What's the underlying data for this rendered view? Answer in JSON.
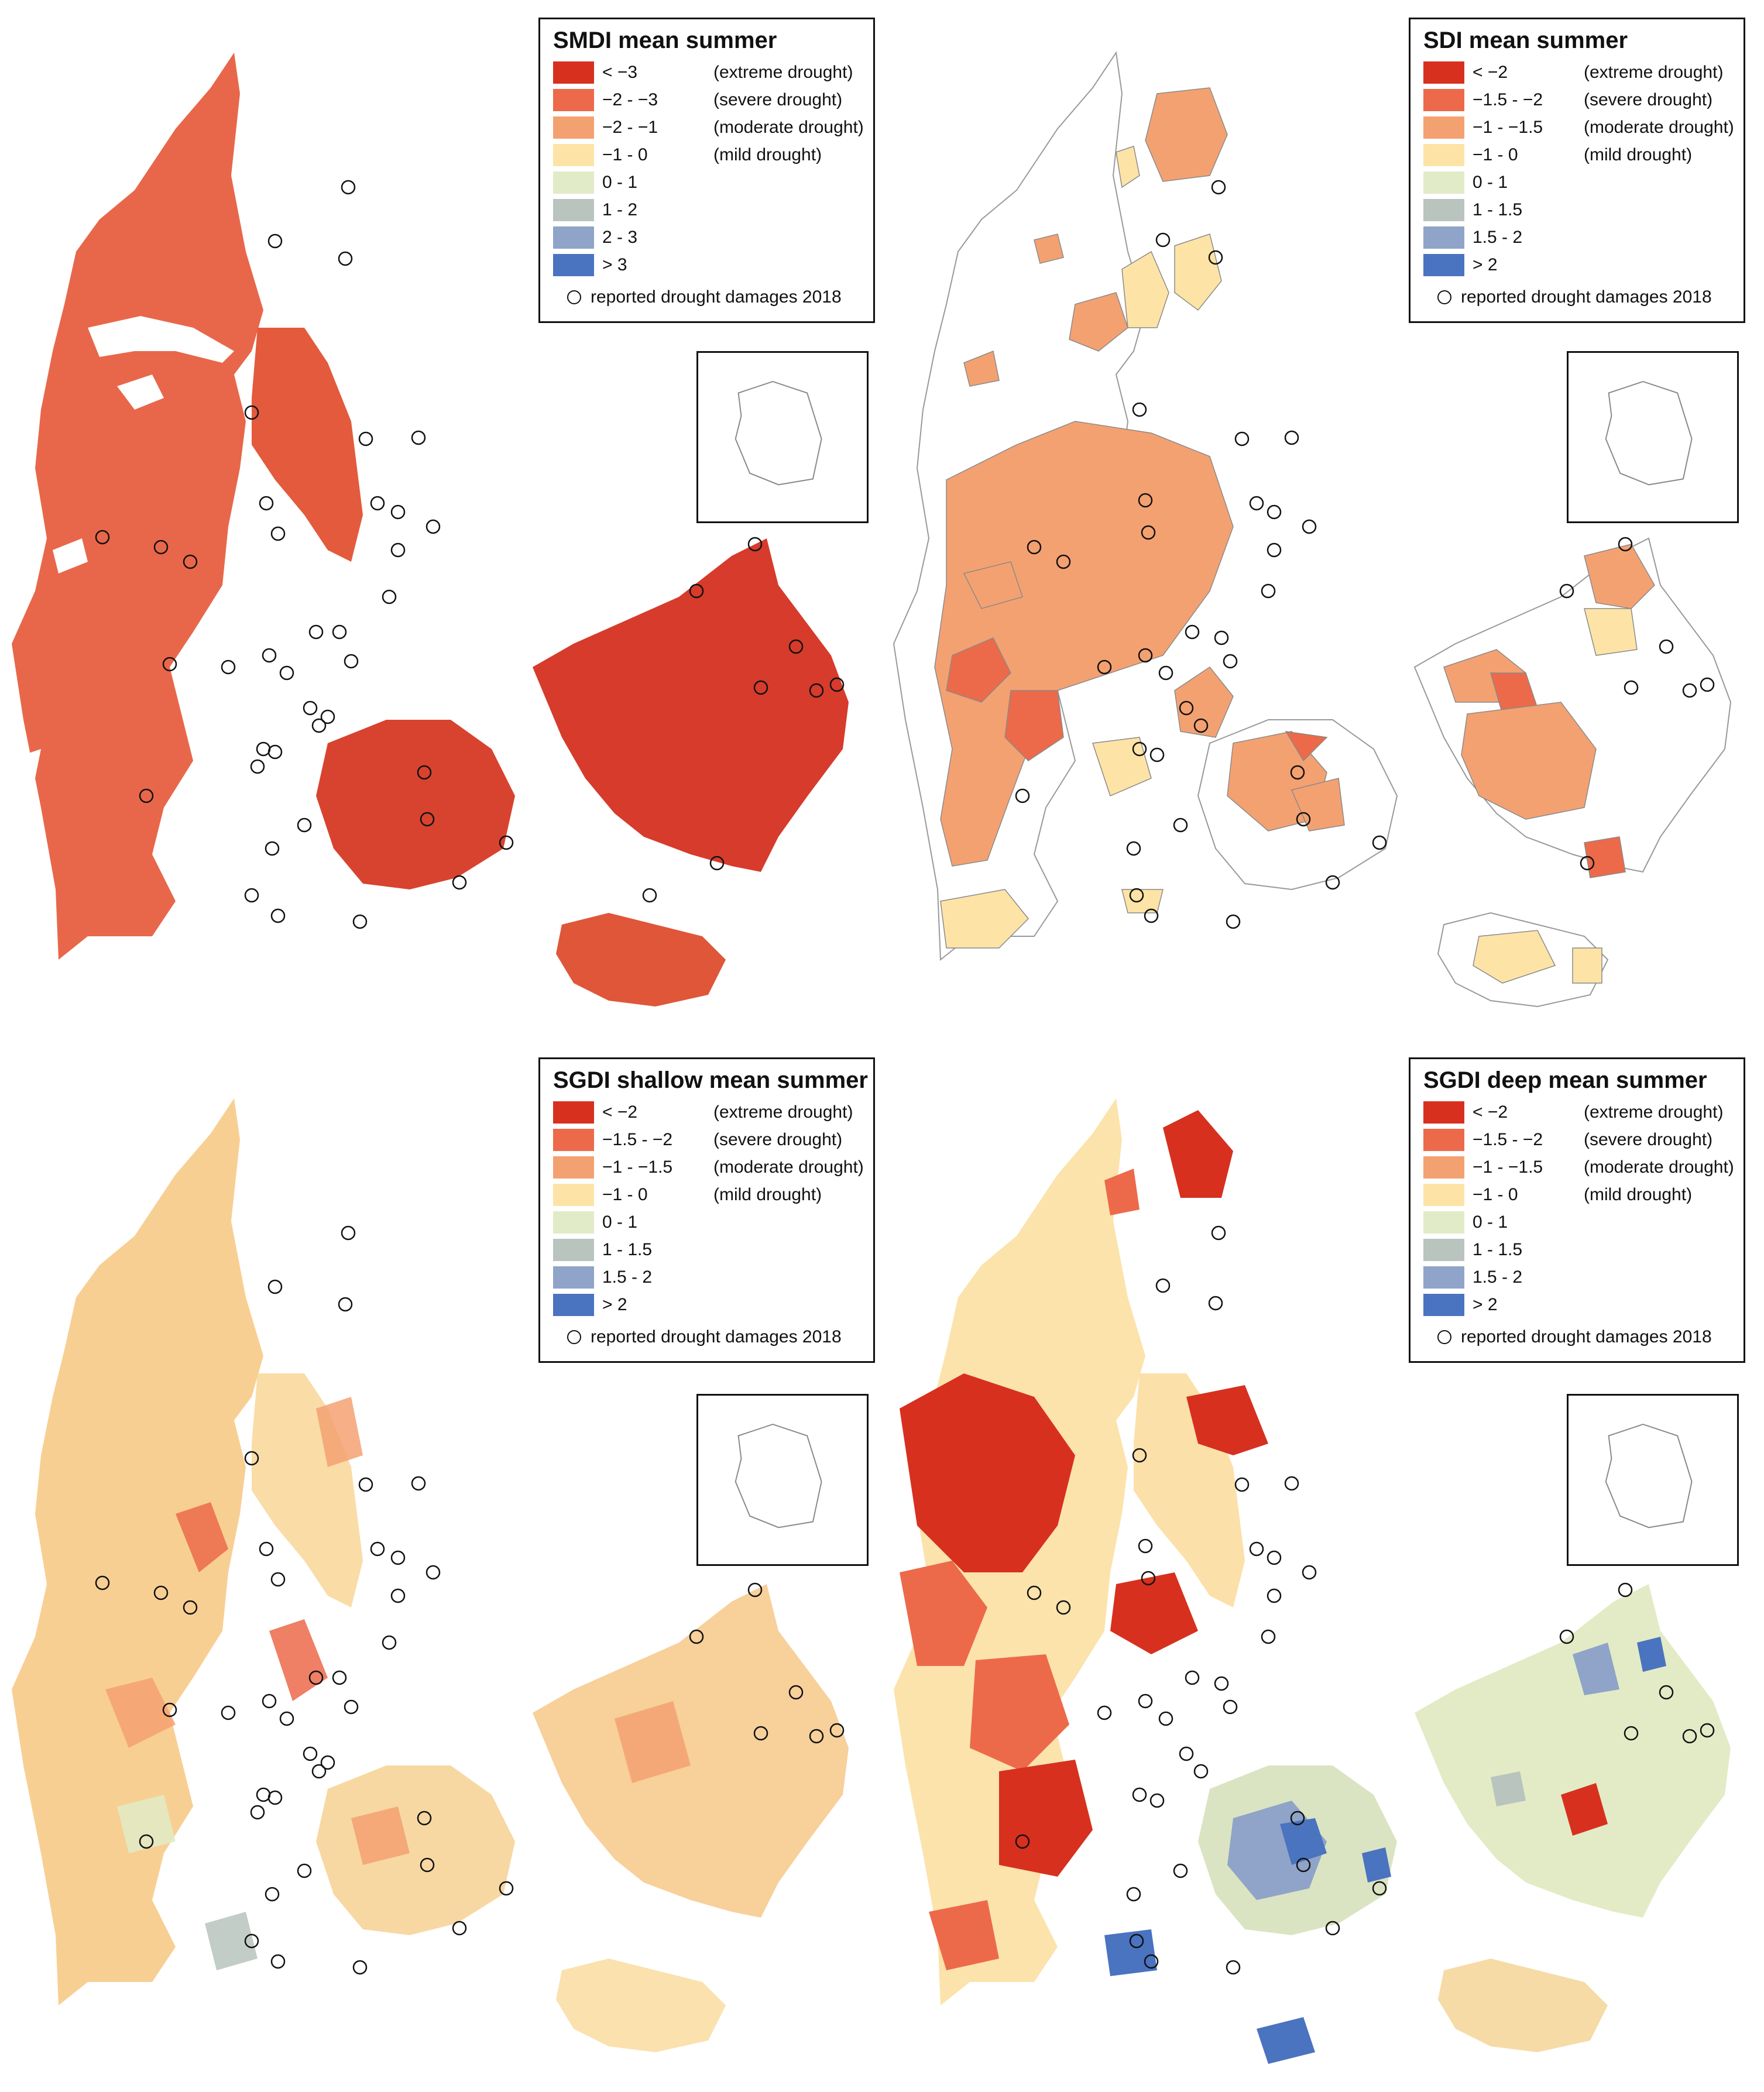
{
  "panels": [
    {
      "title": "SMDI mean summer",
      "classes": [
        {
          "range": "< −3",
          "label": "(extreme drought)",
          "color": "#d7301f"
        },
        {
          "range": "−2 - −3",
          "label": "(severe drought)",
          "color": "#ec6a4a"
        },
        {
          "range": "−2 - −1",
          "label": "(moderate drought)",
          "color": "#f4a171"
        },
        {
          "range": "−1 - 0",
          "label": "(mild drought)",
          "color": "#fde4a6"
        },
        {
          "range": "0 - 1",
          "label": "",
          "color": "#e2ebc7"
        },
        {
          "range": "1 - 2",
          "label": "",
          "color": "#b8c4bd"
        },
        {
          "range": "2 - 3",
          "label": "",
          "color": "#8fa4c8"
        },
        {
          "range": "> 3",
          "label": "",
          "color": "#4a73c0"
        }
      ],
      "damages_label": "reported drought damages 2018",
      "fills": {
        "jutland": "#e8674a",
        "funen": "#d8432f",
        "zealand": "#d63b2c",
        "lolland": "#df5639",
        "north": "#e35a3c"
      }
    },
    {
      "title": "SDI mean summer",
      "classes": [
        {
          "range": "< −2",
          "label": "(extreme drought)",
          "color": "#d7301f"
        },
        {
          "range": "−1.5 - −2",
          "label": "(severe drought)",
          "color": "#ec6a4a"
        },
        {
          "range": "−1 - −1.5",
          "label": "(moderate drought)",
          "color": "#f4a171"
        },
        {
          "range": "−1 - 0",
          "label": "(mild drought)",
          "color": "#fde4a6"
        },
        {
          "range": "0 - 1",
          "label": "",
          "color": "#e2ebc7"
        },
        {
          "range": "1 - 1.5",
          "label": "",
          "color": "#b8c4bd"
        },
        {
          "range": "1.5 - 2",
          "label": "",
          "color": "#8fa4c8"
        },
        {
          "range": "> 2",
          "label": "",
          "color": "#4a73c0"
        }
      ],
      "damages_label": "reported drought damages 2018"
    },
    {
      "title": "SGDI shallow mean summer",
      "classes": [
        {
          "range": "< −2",
          "label": "(extreme drought)",
          "color": "#d7301f"
        },
        {
          "range": "−1.5 - −2",
          "label": "(severe drought)",
          "color": "#ec6a4a"
        },
        {
          "range": "−1 - −1.5",
          "label": "(moderate drought)",
          "color": "#f4a171"
        },
        {
          "range": "−1 - 0",
          "label": "(mild drought)",
          "color": "#fde4a6"
        },
        {
          "range": "0 - 1",
          "label": "",
          "color": "#e2ebc7"
        },
        {
          "range": "1 - 1.5",
          "label": "",
          "color": "#b8c4bd"
        },
        {
          "range": "1.5 - 2",
          "label": "",
          "color": "#8fa4c8"
        },
        {
          "range": "> 2",
          "label": "",
          "color": "#4a73c0"
        }
      ],
      "damages_label": "reported drought damages 2018",
      "fills": {
        "jutland": "#f8cf93",
        "funen": "#f7d8a2",
        "zealand": "#f7d09a",
        "lolland": "#fbe1ae",
        "north": "#f9dca6"
      }
    },
    {
      "title": "SGDI deep mean summer",
      "classes": [
        {
          "range": "< −2",
          "label": "(extreme drought)",
          "color": "#d7301f"
        },
        {
          "range": "−1.5 - −2",
          "label": "(severe drought)",
          "color": "#ec6a4a"
        },
        {
          "range": "−1 - −1.5",
          "label": "(moderate drought)",
          "color": "#f4a171"
        },
        {
          "range": "−1 - 0",
          "label": "(mild drought)",
          "color": "#fde4a6"
        },
        {
          "range": "0 - 1",
          "label": "",
          "color": "#e2ebc7"
        },
        {
          "range": "1 - 1.5",
          "label": "",
          "color": "#b8c4bd"
        },
        {
          "range": "1.5 - 2",
          "label": "",
          "color": "#8fa4c8"
        },
        {
          "range": "> 2",
          "label": "",
          "color": "#4a73c0"
        }
      ],
      "damages_label": "reported drought damages 2018",
      "fills": {
        "jutland": "#fbe3ab",
        "funen": "#dbe4c2",
        "zealand": "#e3ebc6",
        "lolland": "#f6dba6",
        "north": "#fbe0a9"
      }
    }
  ]
}
